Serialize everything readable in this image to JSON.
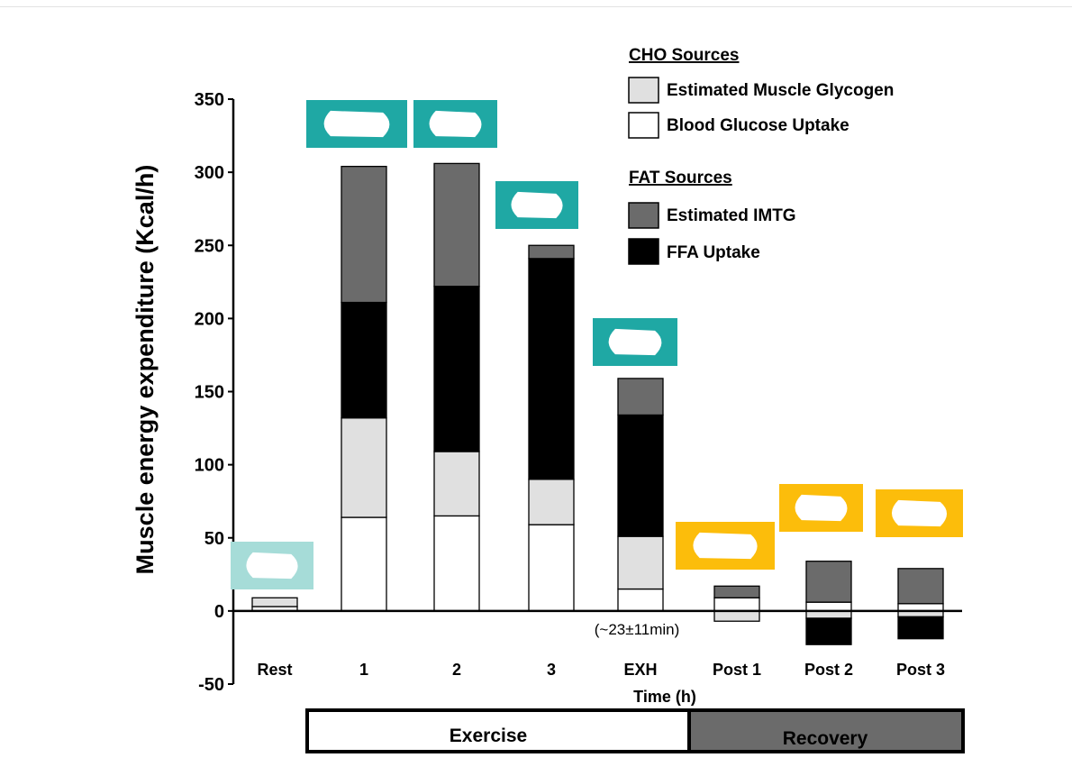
{
  "chart_data": {
    "type": "bar",
    "stacked": true,
    "ylabel": "Muscle energy expenditure (Kcal/h)",
    "xlabel": "Time (h)",
    "ylim": [
      -50,
      350
    ],
    "yticks": [
      350,
      300,
      250,
      200,
      150,
      100,
      50,
      0,
      -50
    ],
    "categories": [
      "Rest",
      "1",
      "2",
      "3",
      "EXH",
      "Post 1",
      "Post 2",
      "Post 3"
    ],
    "series": [
      {
        "name": "Blood Glucose Uptake",
        "color": "#ffffff",
        "values": [
          3,
          64,
          65,
          59,
          15,
          9,
          6,
          5
        ]
      },
      {
        "name": "Estimated Muscle Glycogen",
        "color": "#e0e0e0",
        "values": [
          6,
          68,
          44,
          31,
          36,
          -7,
          -5,
          -4
        ]
      },
      {
        "name": "FFA Uptake",
        "color": "#000000",
        "values": [
          0,
          79,
          113,
          151,
          83,
          0,
          -18,
          -15
        ]
      },
      {
        "name": "Estimated IMTG",
        "color": "#6b6b6b",
        "values": [
          0,
          93,
          84,
          9,
          25,
          8,
          28,
          24
        ]
      }
    ],
    "annotation": "(~23±11min)",
    "legend": {
      "position": "top-right",
      "groups": [
        {
          "heading": "CHO Sources",
          "items": [
            "Estimated Muscle Glycogen",
            "Blood Glucose Uptake"
          ]
        },
        {
          "heading": "FAT Sources",
          "items": [
            "Estimated IMTG",
            "FFA Uptake"
          ]
        }
      ]
    },
    "phases": [
      {
        "label": "Exercise",
        "from": "1",
        "to": "EXH",
        "fill": "#ffffff"
      },
      {
        "label": "Recovery",
        "from": "Post 1",
        "to": "Post 3",
        "fill": "#6b6b6b"
      }
    ],
    "redaction_colors": {
      "exercise": "#1fa8a4",
      "rest": "#a6dcd8",
      "recovery": "#fcbd0b"
    }
  }
}
